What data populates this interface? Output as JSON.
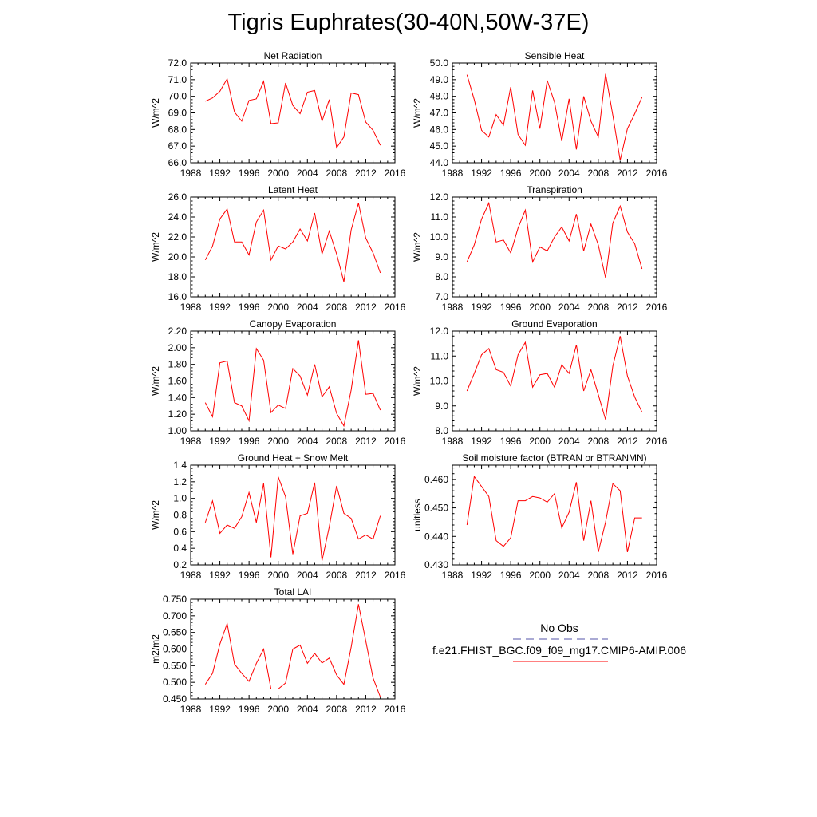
{
  "figure": {
    "title": "Tigris Euphrates(30-40N,50W-37E)",
    "series_color": "#ff0000",
    "obs_color": "#5555aa"
  },
  "legend": {
    "obs_label": "No Obs",
    "model_label": "f.e21.FHIST_BGC.f09_f09_mg17.CMIP6-AMIP.006"
  },
  "chart_data": [
    {
      "type": "line",
      "title": "Net Radiation",
      "ylabel": "W/m^2",
      "xlim": [
        1988,
        2016
      ],
      "ylim": [
        66.0,
        72.0
      ],
      "xticks": [
        1988,
        1992,
        1996,
        2000,
        2004,
        2008,
        2012,
        2016
      ],
      "yticks": [
        66.0,
        67.0,
        68.0,
        69.0,
        70.0,
        71.0,
        72.0
      ],
      "decimals": 1,
      "x": [
        1990,
        1991,
        1992,
        1993,
        1994,
        1995,
        1996,
        1997,
        1998,
        1999,
        2000,
        2001,
        2002,
        2003,
        2004,
        2005,
        2006,
        2007,
        2008,
        2009,
        2010,
        2011,
        2012,
        2013,
        2014
      ],
      "series": [
        {
          "values": [
            69.7,
            69.9,
            70.3,
            71.05,
            69.05,
            68.5,
            69.75,
            69.85,
            70.9,
            68.35,
            68.4,
            70.8,
            69.45,
            68.95,
            70.25,
            70.35,
            68.5,
            69.8,
            66.9,
            67.55,
            70.2,
            70.1,
            68.45,
            67.95,
            67.05
          ]
        }
      ]
    },
    {
      "type": "line",
      "title": "Sensible Heat",
      "ylabel": "W/m^2",
      "xlim": [
        1988,
        2016
      ],
      "ylim": [
        44.0,
        50.0
      ],
      "xticks": [
        1988,
        1992,
        1996,
        2000,
        2004,
        2008,
        2012,
        2016
      ],
      "yticks": [
        44.0,
        45.0,
        46.0,
        47.0,
        48.0,
        49.0,
        50.0
      ],
      "decimals": 1,
      "x": [
        1990,
        1991,
        1992,
        1993,
        1994,
        1995,
        1996,
        1997,
        1998,
        1999,
        2000,
        2001,
        2002,
        2003,
        2004,
        2005,
        2006,
        2007,
        2008,
        2009,
        2010,
        2011,
        2012,
        2013,
        2014
      ],
      "series": [
        {
          "values": [
            49.3,
            47.8,
            45.95,
            45.55,
            46.9,
            46.25,
            48.55,
            45.7,
            45.05,
            48.35,
            46.05,
            48.95,
            47.65,
            45.3,
            47.85,
            44.8,
            48.0,
            46.5,
            45.55,
            49.35,
            46.85,
            44.15,
            46.05,
            46.95,
            47.95
          ]
        }
      ]
    },
    {
      "type": "line",
      "title": "Latent Heat",
      "ylabel": "W/m^2",
      "xlim": [
        1988,
        2016
      ],
      "ylim": [
        16.0,
        26.0
      ],
      "xticks": [
        1988,
        1992,
        1996,
        2000,
        2004,
        2008,
        2012,
        2016
      ],
      "yticks": [
        16.0,
        18.0,
        20.0,
        22.0,
        24.0,
        26.0
      ],
      "decimals": 1,
      "x": [
        1990,
        1991,
        1992,
        1993,
        1994,
        1995,
        1996,
        1997,
        1998,
        1999,
        2000,
        2001,
        2002,
        2003,
        2004,
        2005,
        2006,
        2007,
        2008,
        2009,
        2010,
        2011,
        2012,
        2013,
        2014
      ],
      "series": [
        {
          "values": [
            19.7,
            21.1,
            23.8,
            24.8,
            21.5,
            21.5,
            20.2,
            23.5,
            24.7,
            19.7,
            21.1,
            20.8,
            21.5,
            22.8,
            21.6,
            24.4,
            20.3,
            22.6,
            20.3,
            17.5,
            22.7,
            25.4,
            21.9,
            20.4,
            18.4
          ]
        }
      ]
    },
    {
      "type": "line",
      "title": "Transpiration",
      "ylabel": "W/m^2",
      "xlim": [
        1988,
        2016
      ],
      "ylim": [
        7.0,
        12.0
      ],
      "xticks": [
        1988,
        1992,
        1996,
        2000,
        2004,
        2008,
        2012,
        2016
      ],
      "yticks": [
        7.0,
        8.0,
        9.0,
        10.0,
        11.0,
        12.0
      ],
      "decimals": 1,
      "x": [
        1990,
        1991,
        1992,
        1993,
        1994,
        1995,
        1996,
        1997,
        1998,
        1999,
        2000,
        2001,
        2002,
        2003,
        2004,
        2005,
        2006,
        2007,
        2008,
        2009,
        2010,
        2011,
        2012,
        2013,
        2014
      ],
      "series": [
        {
          "values": [
            8.75,
            9.6,
            10.9,
            11.7,
            9.75,
            9.85,
            9.2,
            10.45,
            11.35,
            8.75,
            9.5,
            9.3,
            10.0,
            10.5,
            9.8,
            11.15,
            9.3,
            10.65,
            9.6,
            7.95,
            10.7,
            11.55,
            10.25,
            9.65,
            8.4
          ]
        }
      ]
    },
    {
      "type": "line",
      "title": "Canopy Evaporation",
      "ylabel": "W/m^2",
      "xlim": [
        1988,
        2016
      ],
      "ylim": [
        1.0,
        2.2
      ],
      "xticks": [
        1988,
        1992,
        1996,
        2000,
        2004,
        2008,
        2012,
        2016
      ],
      "yticks": [
        1.0,
        1.2,
        1.4,
        1.6,
        1.8,
        2.0,
        2.2
      ],
      "decimals": 2,
      "x": [
        1990,
        1991,
        1992,
        1993,
        1994,
        1995,
        1996,
        1997,
        1998,
        1999,
        2000,
        2001,
        2002,
        2003,
        2004,
        2005,
        2006,
        2007,
        2008,
        2009,
        2010,
        2011,
        2012,
        2013,
        2014
      ],
      "series": [
        {
          "values": [
            1.34,
            1.17,
            1.82,
            1.84,
            1.34,
            1.3,
            1.12,
            1.99,
            1.85,
            1.22,
            1.31,
            1.27,
            1.75,
            1.66,
            1.43,
            1.8,
            1.41,
            1.53,
            1.21,
            1.06,
            1.49,
            2.09,
            1.44,
            1.45,
            1.25
          ]
        }
      ]
    },
    {
      "type": "line",
      "title": "Ground Evaporation",
      "ylabel": "W/m^2",
      "xlim": [
        1988,
        2016
      ],
      "ylim": [
        8.0,
        12.0
      ],
      "xticks": [
        1988,
        1992,
        1996,
        2000,
        2004,
        2008,
        2012,
        2016
      ],
      "yticks": [
        8.0,
        9.0,
        10.0,
        11.0,
        12.0
      ],
      "decimals": 1,
      "x": [
        1990,
        1991,
        1992,
        1993,
        1994,
        1995,
        1996,
        1997,
        1998,
        1999,
        2000,
        2001,
        2002,
        2003,
        2004,
        2005,
        2006,
        2007,
        2008,
        2009,
        2010,
        2011,
        2012,
        2013,
        2014
      ],
      "series": [
        {
          "values": [
            9.6,
            10.3,
            11.05,
            11.3,
            10.45,
            10.35,
            9.8,
            11.05,
            11.55,
            9.75,
            10.25,
            10.3,
            9.75,
            10.65,
            10.3,
            11.45,
            9.6,
            10.45,
            9.45,
            8.45,
            10.6,
            11.8,
            10.2,
            9.35,
            8.75
          ]
        }
      ]
    },
    {
      "type": "line",
      "title": "Ground Heat + Snow Melt",
      "ylabel": "W/m^2",
      "xlim": [
        1988,
        2016
      ],
      "ylim": [
        0.2,
        1.4
      ],
      "xticks": [
        1988,
        1992,
        1996,
        2000,
        2004,
        2008,
        2012,
        2016
      ],
      "yticks": [
        0.2,
        0.4,
        0.6,
        0.8,
        1.0,
        1.2,
        1.4
      ],
      "decimals": 1,
      "x": [
        1990,
        1991,
        1992,
        1993,
        1994,
        1995,
        1996,
        1997,
        1998,
        1999,
        2000,
        2001,
        2002,
        2003,
        2004,
        2005,
        2006,
        2007,
        2008,
        2009,
        2010,
        2011,
        2012,
        2013,
        2014
      ],
      "series": [
        {
          "values": [
            0.71,
            0.97,
            0.58,
            0.68,
            0.64,
            0.78,
            1.07,
            0.71,
            1.18,
            0.29,
            1.26,
            1.02,
            0.33,
            0.79,
            0.82,
            1.19,
            0.25,
            0.66,
            1.15,
            0.82,
            0.76,
            0.51,
            0.56,
            0.51,
            0.79
          ]
        }
      ]
    },
    {
      "type": "line",
      "title": "Soil moisture factor (BTRAN or BTRANMN)",
      "ylabel": "unitless",
      "xlim": [
        1988,
        2016
      ],
      "ylim": [
        0.43,
        0.465
      ],
      "xticks": [
        1988,
        1992,
        1996,
        2000,
        2004,
        2008,
        2012,
        2016
      ],
      "yticks": [
        0.43,
        0.44,
        0.45,
        0.46
      ],
      "decimals": 3,
      "x": [
        1990,
        1991,
        1992,
        1993,
        1994,
        1995,
        1996,
        1997,
        1998,
        1999,
        2000,
        2001,
        2002,
        2003,
        2004,
        2005,
        2006,
        2007,
        2008,
        2009,
        2010,
        2011,
        2012,
        2013,
        2014
      ],
      "series": [
        {
          "values": [
            0.444,
            0.461,
            0.4575,
            0.454,
            0.4385,
            0.4365,
            0.4395,
            0.4525,
            0.4525,
            0.454,
            0.4535,
            0.452,
            0.455,
            0.443,
            0.4485,
            0.459,
            0.4385,
            0.4525,
            0.4345,
            0.445,
            0.4585,
            0.456,
            0.4345,
            0.4465,
            0.4465
          ]
        }
      ]
    },
    {
      "type": "line",
      "title": "Total LAI",
      "ylabel": "m2/m2",
      "xlim": [
        1988,
        2016
      ],
      "ylim": [
        0.45,
        0.75
      ],
      "xticks": [
        1988,
        1992,
        1996,
        2000,
        2004,
        2008,
        2012,
        2016
      ],
      "yticks": [
        0.45,
        0.5,
        0.55,
        0.6,
        0.65,
        0.7,
        0.75
      ],
      "decimals": 3,
      "x": [
        1990,
        1991,
        1992,
        1993,
        1994,
        1995,
        1996,
        1997,
        1998,
        1999,
        2000,
        2001,
        2002,
        2003,
        2004,
        2005,
        2006,
        2007,
        2008,
        2009,
        2010,
        2011,
        2012,
        2013,
        2014
      ],
      "series": [
        {
          "values": [
            0.494,
            0.527,
            0.615,
            0.677,
            0.555,
            0.527,
            0.503,
            0.557,
            0.6,
            0.48,
            0.48,
            0.498,
            0.6,
            0.612,
            0.557,
            0.587,
            0.558,
            0.573,
            0.522,
            0.494,
            0.605,
            0.735,
            0.625,
            0.513,
            0.456
          ]
        }
      ]
    }
  ]
}
